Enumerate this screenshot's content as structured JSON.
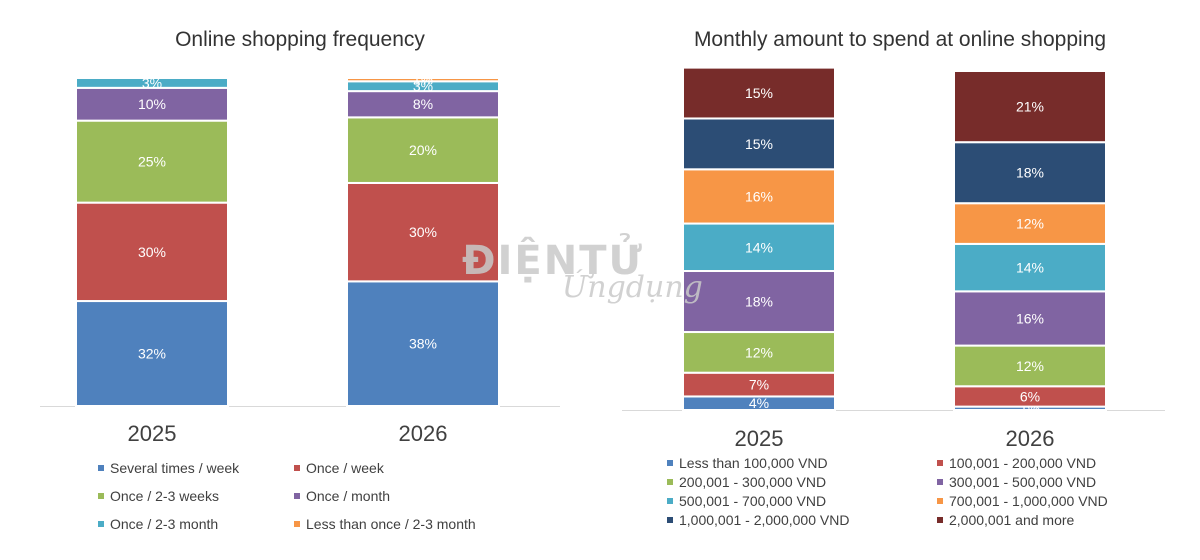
{
  "watermark": {
    "line1": "ĐIỆNTỬ",
    "line2": "Ứngdụng"
  },
  "chart_data": [
    {
      "type": "bar",
      "stacked": true,
      "title": "Online shopping frequency",
      "categories": [
        "2025",
        "2026"
      ],
      "series": [
        {
          "name": "Several times / week",
          "color": "#4F81BD",
          "values": [
            32,
            38
          ]
        },
        {
          "name": "Once / week",
          "color": "#C0504D",
          "values": [
            30,
            30
          ]
        },
        {
          "name": "Once / 2-3 weeks",
          "color": "#9BBB59",
          "values": [
            25,
            20
          ]
        },
        {
          "name": "Once / month",
          "color": "#8064A2",
          "values": [
            10,
            8
          ]
        },
        {
          "name": "Once / 2-3 month",
          "color": "#4BACC6",
          "values": [
            3,
            3
          ]
        },
        {
          "name": "Less than once / 2-3 month",
          "color": "#F79646",
          "values": [
            0,
            1
          ]
        }
      ],
      "value_labels": [
        [
          "32%",
          "38%"
        ],
        [
          "30%",
          "30%"
        ],
        [
          "25%",
          "20%"
        ],
        [
          "10%",
          "8%"
        ],
        [
          "3%",
          "3%"
        ],
        [
          "",
          "1%"
        ]
      ],
      "legend_position": "bottom",
      "grid": false
    },
    {
      "type": "bar",
      "stacked": true,
      "title": "Monthly amount to spend at online shopping",
      "categories": [
        "2025",
        "2026"
      ],
      "series": [
        {
          "name": "Less than 100,000 VND",
          "color": "#4F81BD",
          "values": [
            4,
            1
          ]
        },
        {
          "name": "100,001 - 200,000 VND",
          "color": "#C0504D",
          "values": [
            7,
            6
          ]
        },
        {
          "name": "200,001 - 300,000 VND",
          "color": "#9BBB59",
          "values": [
            12,
            12
          ]
        },
        {
          "name": "300,001 - 500,000 VND",
          "color": "#8064A2",
          "values": [
            18,
            16
          ]
        },
        {
          "name": "500,001 - 700,000 VND",
          "color": "#4BACC6",
          "values": [
            14,
            14
          ]
        },
        {
          "name": "700,001 - 1,000,000 VND",
          "color": "#F79646",
          "values": [
            16,
            12
          ]
        },
        {
          "name": "1,000,001 - 2,000,000 VND",
          "color": "#2C4D75",
          "values": [
            15,
            18
          ]
        },
        {
          "name": "2,000,001 and more",
          "color": "#772C2A",
          "values": [
            15,
            21
          ]
        }
      ],
      "value_labels": [
        [
          "4%",
          "1%"
        ],
        [
          "7%",
          "6%"
        ],
        [
          "12%",
          "12%"
        ],
        [
          "18%",
          "16%"
        ],
        [
          "14%",
          "14%"
        ],
        [
          "16%",
          "12%"
        ],
        [
          "15%",
          "18%"
        ],
        [
          "15%",
          "21%"
        ]
      ],
      "legend_position": "bottom",
      "grid": false
    }
  ]
}
